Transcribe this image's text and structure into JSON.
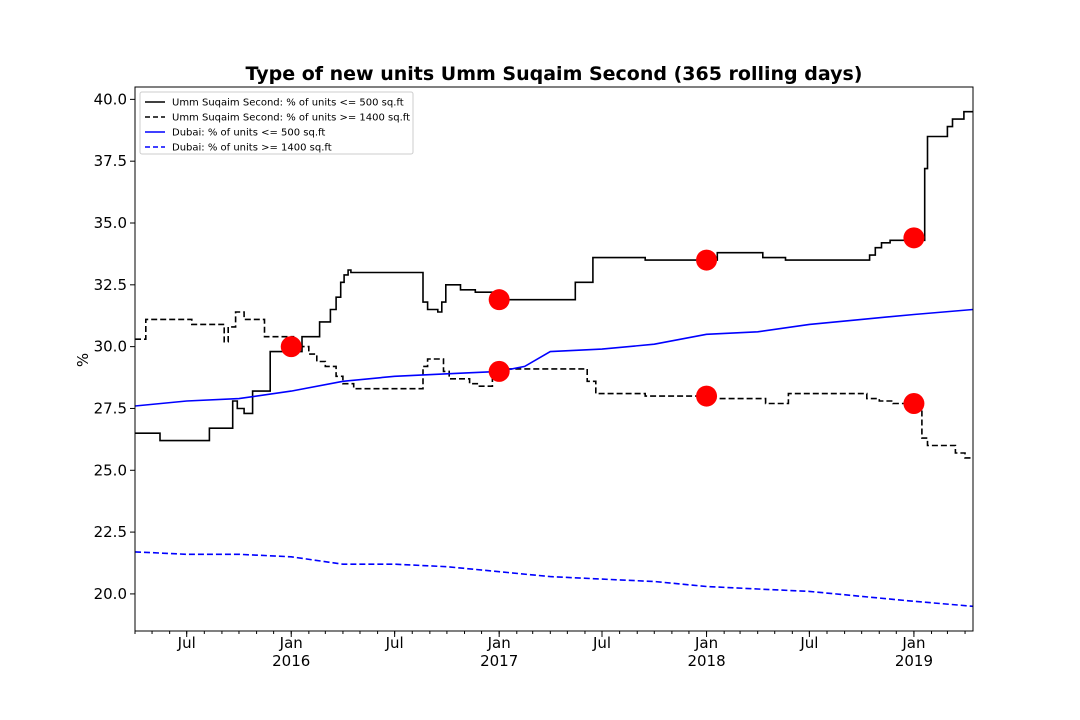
{
  "chart_data": {
    "type": "line",
    "title": "Type of new units Umm Suqaim Second (365 rolling days)",
    "xlabel": "",
    "ylabel": "%",
    "xlim": [
      "2015-04-01",
      "2019-04-15"
    ],
    "ylim": [
      18.5,
      40.5
    ],
    "yticks": [
      "20.0",
      "22.5",
      "25.0",
      "27.5",
      "30.0",
      "32.5",
      "35.0",
      "37.5",
      "40.0"
    ],
    "xticks": [
      {
        "date": "2015-07-01",
        "label": "Jul",
        "year": ""
      },
      {
        "date": "2016-01-01",
        "label": "Jan",
        "year": "2016"
      },
      {
        "date": "2016-07-01",
        "label": "Jul",
        "year": ""
      },
      {
        "date": "2017-01-01",
        "label": "Jan",
        "year": "2017"
      },
      {
        "date": "2017-07-01",
        "label": "Jul",
        "year": ""
      },
      {
        "date": "2018-01-01",
        "label": "Jan",
        "year": "2018"
      },
      {
        "date": "2018-07-01",
        "label": "Jul",
        "year": ""
      },
      {
        "date": "2019-01-01",
        "label": "Jan",
        "year": "2019"
      }
    ],
    "grid": false,
    "legend_position": "top-left",
    "series": [
      {
        "name": "Umm Suqaim Second: % of units <= 500 sq.ft",
        "color": "#000000",
        "style": "solid",
        "step": true,
        "points": [
          [
            "2015-04-01",
            26.5
          ],
          [
            "2015-05-15",
            26.2
          ],
          [
            "2015-08-10",
            26.7
          ],
          [
            "2015-09-20",
            27.8
          ],
          [
            "2015-09-28",
            27.5
          ],
          [
            "2015-10-10",
            27.3
          ],
          [
            "2015-10-25",
            28.2
          ],
          [
            "2015-11-25",
            29.8
          ],
          [
            "2016-01-20",
            30.4
          ],
          [
            "2016-02-20",
            31.0
          ],
          [
            "2016-03-10",
            31.5
          ],
          [
            "2016-03-20",
            32.0
          ],
          [
            "2016-03-28",
            32.6
          ],
          [
            "2016-04-03",
            32.9
          ],
          [
            "2016-04-10",
            33.1
          ],
          [
            "2016-04-15",
            33.0
          ],
          [
            "2016-08-20",
            31.8
          ],
          [
            "2016-08-28",
            31.5
          ],
          [
            "2016-09-15",
            31.4
          ],
          [
            "2016-09-22",
            31.8
          ],
          [
            "2016-09-29",
            32.5
          ],
          [
            "2016-10-25",
            32.3
          ],
          [
            "2016-11-20",
            32.2
          ],
          [
            "2016-12-30",
            31.9
          ],
          [
            "2017-05-15",
            32.6
          ],
          [
            "2017-06-15",
            33.6
          ],
          [
            "2017-09-15",
            33.5
          ],
          [
            "2017-11-10",
            33.5
          ],
          [
            "2018-01-20",
            33.8
          ],
          [
            "2018-04-10",
            33.6
          ],
          [
            "2018-05-20",
            33.5
          ],
          [
            "2018-10-15",
            33.7
          ],
          [
            "2018-10-25",
            34.0
          ],
          [
            "2018-11-05",
            34.2
          ],
          [
            "2018-11-20",
            34.3
          ],
          [
            "2019-01-20",
            37.2
          ],
          [
            "2019-01-25",
            38.5
          ],
          [
            "2019-03-01",
            38.9
          ],
          [
            "2019-03-10",
            39.2
          ],
          [
            "2019-03-30",
            39.5
          ],
          [
            "2019-04-15",
            39.5
          ]
        ]
      },
      {
        "name": "Umm Suqaim Second: % of units >= 1400 sq.ft",
        "color": "#000000",
        "style": "dashed",
        "step": true,
        "points": [
          [
            "2015-04-01",
            30.3
          ],
          [
            "2015-04-20",
            31.1
          ],
          [
            "2015-07-10",
            30.9
          ],
          [
            "2015-09-05",
            30.2
          ],
          [
            "2015-09-12",
            30.8
          ],
          [
            "2015-09-25",
            31.4
          ],
          [
            "2015-10-10",
            31.1
          ],
          [
            "2015-11-15",
            30.4
          ],
          [
            "2016-01-05",
            30.0
          ],
          [
            "2016-02-01",
            29.7
          ],
          [
            "2016-02-15",
            29.4
          ],
          [
            "2016-03-01",
            29.2
          ],
          [
            "2016-03-20",
            28.8
          ],
          [
            "2016-04-01",
            28.5
          ],
          [
            "2016-04-20",
            28.3
          ],
          [
            "2016-08-20",
            29.2
          ],
          [
            "2016-08-28",
            29.5
          ],
          [
            "2016-09-25",
            29.0
          ],
          [
            "2016-10-05",
            28.7
          ],
          [
            "2016-11-10",
            28.5
          ],
          [
            "2016-11-25",
            28.4
          ],
          [
            "2016-12-20",
            28.8
          ],
          [
            "2016-12-28",
            29.1
          ],
          [
            "2017-06-05",
            28.6
          ],
          [
            "2017-06-20",
            28.1
          ],
          [
            "2017-09-15",
            28.0
          ],
          [
            "2017-10-01",
            28.0
          ],
          [
            "2018-01-10",
            27.9
          ],
          [
            "2018-04-15",
            27.7
          ],
          [
            "2018-05-25",
            28.1
          ],
          [
            "2018-10-10",
            27.9
          ],
          [
            "2018-11-01",
            27.8
          ],
          [
            "2018-11-25",
            27.7
          ],
          [
            "2019-01-15",
            26.3
          ],
          [
            "2019-01-25",
            26.0
          ],
          [
            "2019-03-15",
            25.7
          ],
          [
            "2019-04-01",
            25.5
          ],
          [
            "2019-04-15",
            25.5
          ]
        ]
      },
      {
        "name": "Dubai: % of units <= 500 sq.ft",
        "color": "#0000ff",
        "style": "solid",
        "step": false,
        "points": [
          [
            "2015-04-01",
            27.6
          ],
          [
            "2015-07-01",
            27.8
          ],
          [
            "2015-10-01",
            27.9
          ],
          [
            "2016-01-01",
            28.2
          ],
          [
            "2016-04-01",
            28.6
          ],
          [
            "2016-07-01",
            28.8
          ],
          [
            "2016-10-01",
            28.9
          ],
          [
            "2017-01-01",
            29.0
          ],
          [
            "2017-02-15",
            29.2
          ],
          [
            "2017-04-01",
            29.8
          ],
          [
            "2017-07-01",
            29.9
          ],
          [
            "2017-10-01",
            30.1
          ],
          [
            "2018-01-01",
            30.5
          ],
          [
            "2018-04-01",
            30.6
          ],
          [
            "2018-07-01",
            30.9
          ],
          [
            "2018-10-01",
            31.1
          ],
          [
            "2019-01-01",
            31.3
          ],
          [
            "2019-04-15",
            31.5
          ]
        ]
      },
      {
        "name": "Dubai: % of units >= 1400 sq.ft",
        "color": "#0000ff",
        "style": "dashed",
        "step": false,
        "points": [
          [
            "2015-04-01",
            21.7
          ],
          [
            "2015-07-01",
            21.6
          ],
          [
            "2015-10-01",
            21.6
          ],
          [
            "2016-01-01",
            21.5
          ],
          [
            "2016-04-01",
            21.2
          ],
          [
            "2016-07-01",
            21.2
          ],
          [
            "2016-10-01",
            21.1
          ],
          [
            "2017-01-01",
            20.9
          ],
          [
            "2017-04-01",
            20.7
          ],
          [
            "2017-07-01",
            20.6
          ],
          [
            "2017-10-01",
            20.5
          ],
          [
            "2018-01-01",
            20.3
          ],
          [
            "2018-04-01",
            20.2
          ],
          [
            "2018-07-01",
            20.1
          ],
          [
            "2018-10-01",
            19.9
          ],
          [
            "2019-01-01",
            19.7
          ],
          [
            "2019-04-15",
            19.5
          ]
        ]
      }
    ],
    "markers": {
      "color": "#ff0000",
      "points": [
        [
          "2016-01-01",
          30.0
        ],
        [
          "2017-01-01",
          31.9
        ],
        [
          "2017-01-01",
          29.0
        ],
        [
          "2018-01-01",
          33.5
        ],
        [
          "2018-01-01",
          28.0
        ],
        [
          "2019-01-01",
          34.4
        ],
        [
          "2019-01-01",
          27.7
        ]
      ]
    }
  }
}
